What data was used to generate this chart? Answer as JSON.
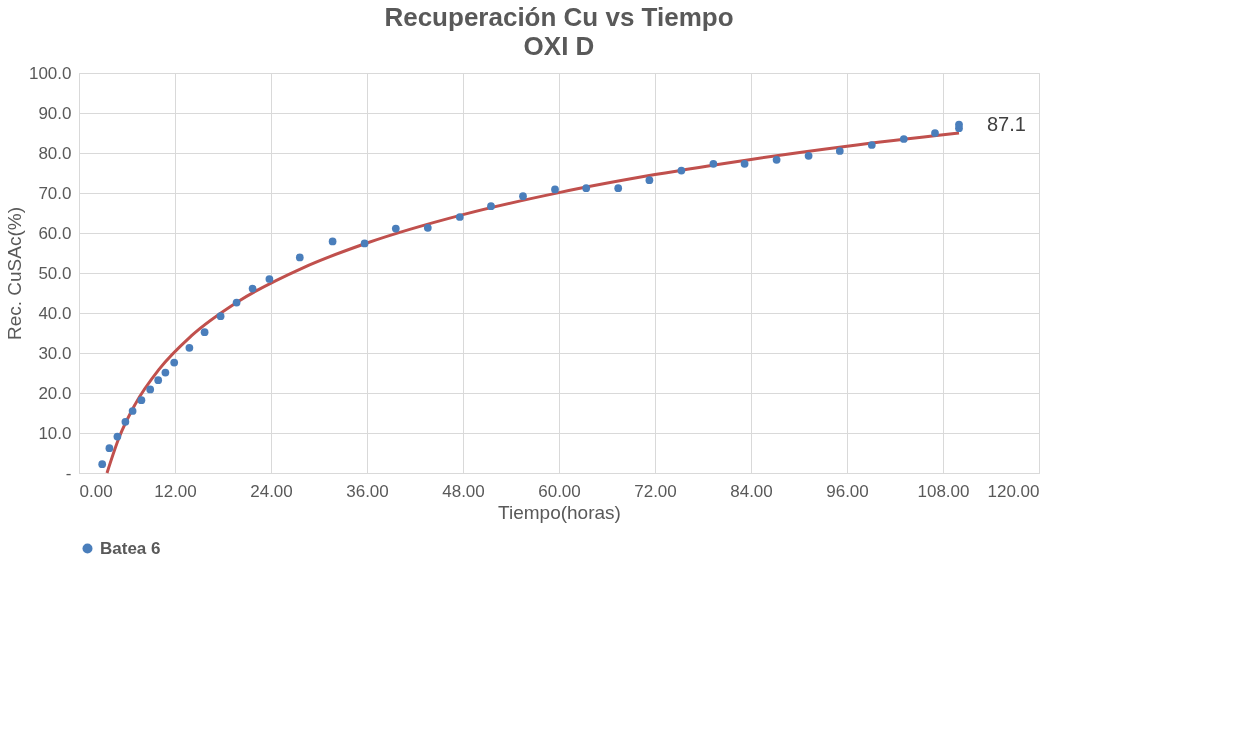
{
  "chart_data": {
    "type": "scatter",
    "title": "Recuperación Cu vs Tiempo",
    "subtitle": "OXI D",
    "xlabel": "Tiempo(horas)",
    "ylabel": "Rec. CuSAc(%)",
    "xlim": [
      0,
      120
    ],
    "xticks": [
      {
        "value": 0,
        "label": "0.00"
      },
      {
        "value": 12,
        "label": "12.00"
      },
      {
        "value": 24,
        "label": "24.00"
      },
      {
        "value": 36,
        "label": "36.00"
      },
      {
        "value": 48,
        "label": "48.00"
      },
      {
        "value": 60,
        "label": "60.00"
      },
      {
        "value": 72,
        "label": "72.00"
      },
      {
        "value": 84,
        "label": "84.00"
      },
      {
        "value": 96,
        "label": "96.00"
      },
      {
        "value": 108,
        "label": "108.00"
      },
      {
        "value": 120,
        "label": "120.00"
      }
    ],
    "ylim": [
      0,
      100
    ],
    "yticks": [
      {
        "value": 0,
        "label": "-"
      },
      {
        "value": 10,
        "label": "10.0"
      },
      {
        "value": 20,
        "label": "20.0"
      },
      {
        "value": 30,
        "label": "30.0"
      },
      {
        "value": 40,
        "label": "40.0"
      },
      {
        "value": 50,
        "label": "50.0"
      },
      {
        "value": 60,
        "label": "60.0"
      },
      {
        "value": 70,
        "label": "70.0"
      },
      {
        "value": 80,
        "label": "80.0"
      },
      {
        "value": 90,
        "label": "90.0"
      },
      {
        "value": 100,
        "label": "100.0"
      }
    ],
    "grid": true,
    "legend": "bottom",
    "marker": "circle",
    "series": [
      {
        "name": "Batea 6",
        "type": "scatter",
        "color": "#4a7ebb",
        "x": [
          2.9,
          3.8,
          4.8,
          5.8,
          6.7,
          7.8,
          8.9,
          9.9,
          10.8,
          11.9,
          13.8,
          15.7,
          17.7,
          19.7,
          21.7,
          23.8,
          27.6,
          31.7,
          35.7,
          39.6,
          43.6,
          47.6,
          51.5,
          55.5,
          59.5,
          63.4,
          67.4,
          71.3,
          75.3,
          79.3,
          83.2,
          87.2,
          91.2,
          95.1,
          99.1,
          103.1,
          107.0,
          110.0,
          110.0
        ],
        "values": [
          2.2,
          6.2,
          9.1,
          12.8,
          15.5,
          18.2,
          20.9,
          23.2,
          25.1,
          27.6,
          31.3,
          35.2,
          39.2,
          42.6,
          46.1,
          48.5,
          53.9,
          57.9,
          57.4,
          61.1,
          61.3,
          64.0,
          66.7,
          69.2,
          70.9,
          71.2,
          71.2,
          73.2,
          75.6,
          77.3,
          77.3,
          78.3,
          79.3,
          80.5,
          82.0,
          83.5,
          85.0,
          86.2,
          87.1
        ],
        "value_labels": [
          null,
          null,
          null,
          null,
          null,
          null,
          null,
          null,
          null,
          null,
          null,
          null,
          null,
          null,
          null,
          null,
          null,
          null,
          null,
          null,
          null,
          null,
          null,
          null,
          null,
          null,
          null,
          null,
          null,
          null,
          null,
          null,
          null,
          null,
          null,
          null,
          null,
          null,
          "87.1"
        ]
      },
      {
        "type": "line",
        "color": "#c0504d",
        "line_style": "solid",
        "marker": "none",
        "x": [
          3.5,
          5,
          7,
          10,
          14,
          20,
          28,
          36,
          48,
          60,
          72,
          84,
          96,
          110
        ],
        "values": [
          0,
          8.8,
          17.1,
          25.9,
          34.2,
          43.0,
          51.3,
          57.5,
          64.6,
          70.1,
          74.6,
          78.4,
          81.7,
          85.0
        ]
      }
    ]
  }
}
